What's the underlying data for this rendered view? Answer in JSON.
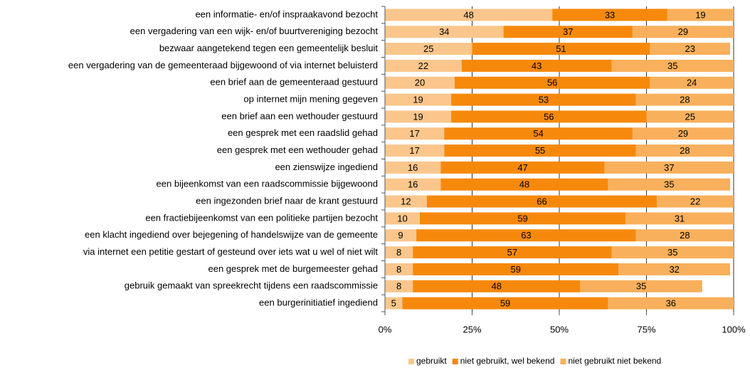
{
  "chart_data": {
    "type": "stacked_barh",
    "categories": [
      "een informatie- en/of inspraakavond bezocht",
      "een vergadering van een wijk- en/of buurtvereniging bezocht",
      "bezwaar aangetekend tegen een gemeentelijk besluit",
      "een vergadering van de gemeenteraad bijgewoond of via internet beluisterd",
      "een brief aan de gemeenteraad gestuurd",
      "op internet mijn mening gegeven",
      "een brief aan een wethouder gestuurd",
      "een gesprek met een raadslid gehad",
      "een gesprek met een wethouder gehad",
      "een zienswijze ingediend",
      "een bijeenkomst van een raadscommissie bijgewoond",
      "een ingezonden brief naar de krant gestuurd",
      "een fractiebijeenkomst van een politieke partijen bezocht",
      "een klacht ingediend over bejegening of handelswijze van de gemeente",
      "via internet een petitie gestart of gesteund over iets wat u wel of niet wilt",
      "een gesprek met de burgemeester gehad",
      "gebruik gemaakt van spreekrecht tijdens een raadscommissie",
      "een burgerinitiatief ingediend"
    ],
    "series": [
      {
        "name": "gebruikt",
        "color": "#fac68c",
        "values": [
          48,
          34,
          25,
          22,
          20,
          19,
          19,
          17,
          17,
          16,
          16,
          12,
          10,
          9,
          8,
          8,
          8,
          5
        ]
      },
      {
        "name": "niet gebruikt, wel bekend",
        "color": "#f6890c",
        "values": [
          33,
          37,
          51,
          43,
          56,
          53,
          56,
          54,
          55,
          47,
          48,
          66,
          59,
          63,
          57,
          59,
          48,
          59
        ]
      },
      {
        "name": "niet gebruikt niet bekend",
        "color": "#f9b05c",
        "values": [
          19,
          29,
          23,
          35,
          24,
          28,
          25,
          29,
          28,
          37,
          35,
          22,
          31,
          28,
          35,
          32,
          35,
          36
        ]
      }
    ],
    "xlim": [
      0,
      100
    ],
    "xticks": [
      {
        "value": 0,
        "label": "0%"
      },
      {
        "value": 25,
        "label": "25%"
      },
      {
        "value": 50,
        "label": "50%"
      },
      {
        "value": 75,
        "label": "75%"
      },
      {
        "value": 100,
        "label": "100%"
      }
    ],
    "grid": true,
    "legend": "bottom"
  }
}
